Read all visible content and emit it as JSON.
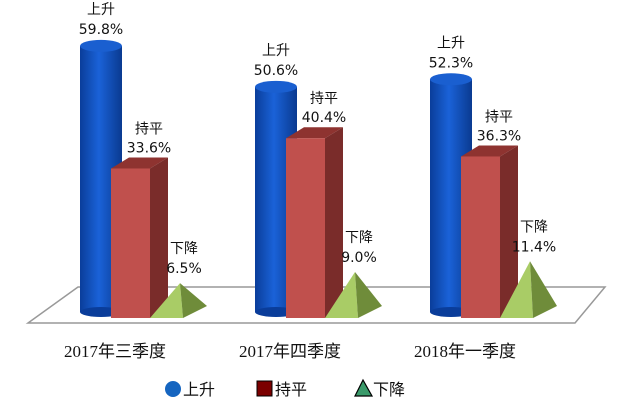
{
  "chart_data": {
    "type": "bar",
    "title": "",
    "categories": [
      "2017年三季度",
      "2017年四季度",
      "2018年一季度"
    ],
    "series": [
      {
        "name": "上升",
        "values": [
          59.8,
          50.6,
          52.3
        ],
        "color": "#1155c8",
        "shape": "cylinder"
      },
      {
        "name": "持平",
        "values": [
          33.6,
          40.4,
          36.3
        ],
        "color": "#c0504d",
        "shape": "box"
      },
      {
        "name": "下降",
        "values": [
          6.5,
          9.0,
          11.4
        ],
        "color": "#9bbb59",
        "shape": "pyramid"
      }
    ],
    "data_labels": [
      [
        "59.8%",
        "50.6%",
        "52.3%"
      ],
      [
        "33.6%",
        "40.4%",
        "36.3%"
      ],
      [
        "6.5%",
        "9.0%",
        "11.4%"
      ]
    ],
    "legend": {
      "placement": "bottom",
      "items": [
        "上升",
        "持平",
        "下降"
      ],
      "colors": [
        "#1565c0",
        "#7b0000",
        "#3a9a6a"
      ]
    },
    "ylim": [
      0,
      60
    ],
    "xlabel": "",
    "ylabel": ""
  }
}
